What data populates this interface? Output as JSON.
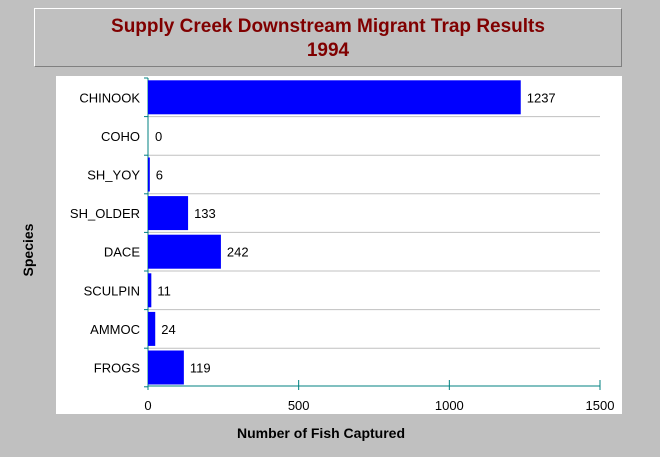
{
  "chart_data": {
    "type": "bar",
    "orientation": "horizontal",
    "title": "Supply Creek Downstream Migrant Trap Results",
    "subtitle": "1994",
    "xlabel": "Number of Fish Captured",
    "ylabel": "Species",
    "categories": [
      "CHINOOK",
      "COHO",
      "SH_YOY",
      "SH_OLDER",
      "DACE",
      "SCULPIN",
      "AMMOC",
      "FROGS"
    ],
    "values": [
      1237,
      0,
      6,
      133,
      242,
      11,
      24,
      119
    ],
    "xlim": [
      0,
      1500
    ],
    "xticks": [
      0,
      500,
      1000,
      1500
    ],
    "grid": true,
    "colors": {
      "bar": "#0000ff",
      "title": "#800000",
      "background": "#c0c0c0",
      "plot": "#ffffff"
    }
  }
}
